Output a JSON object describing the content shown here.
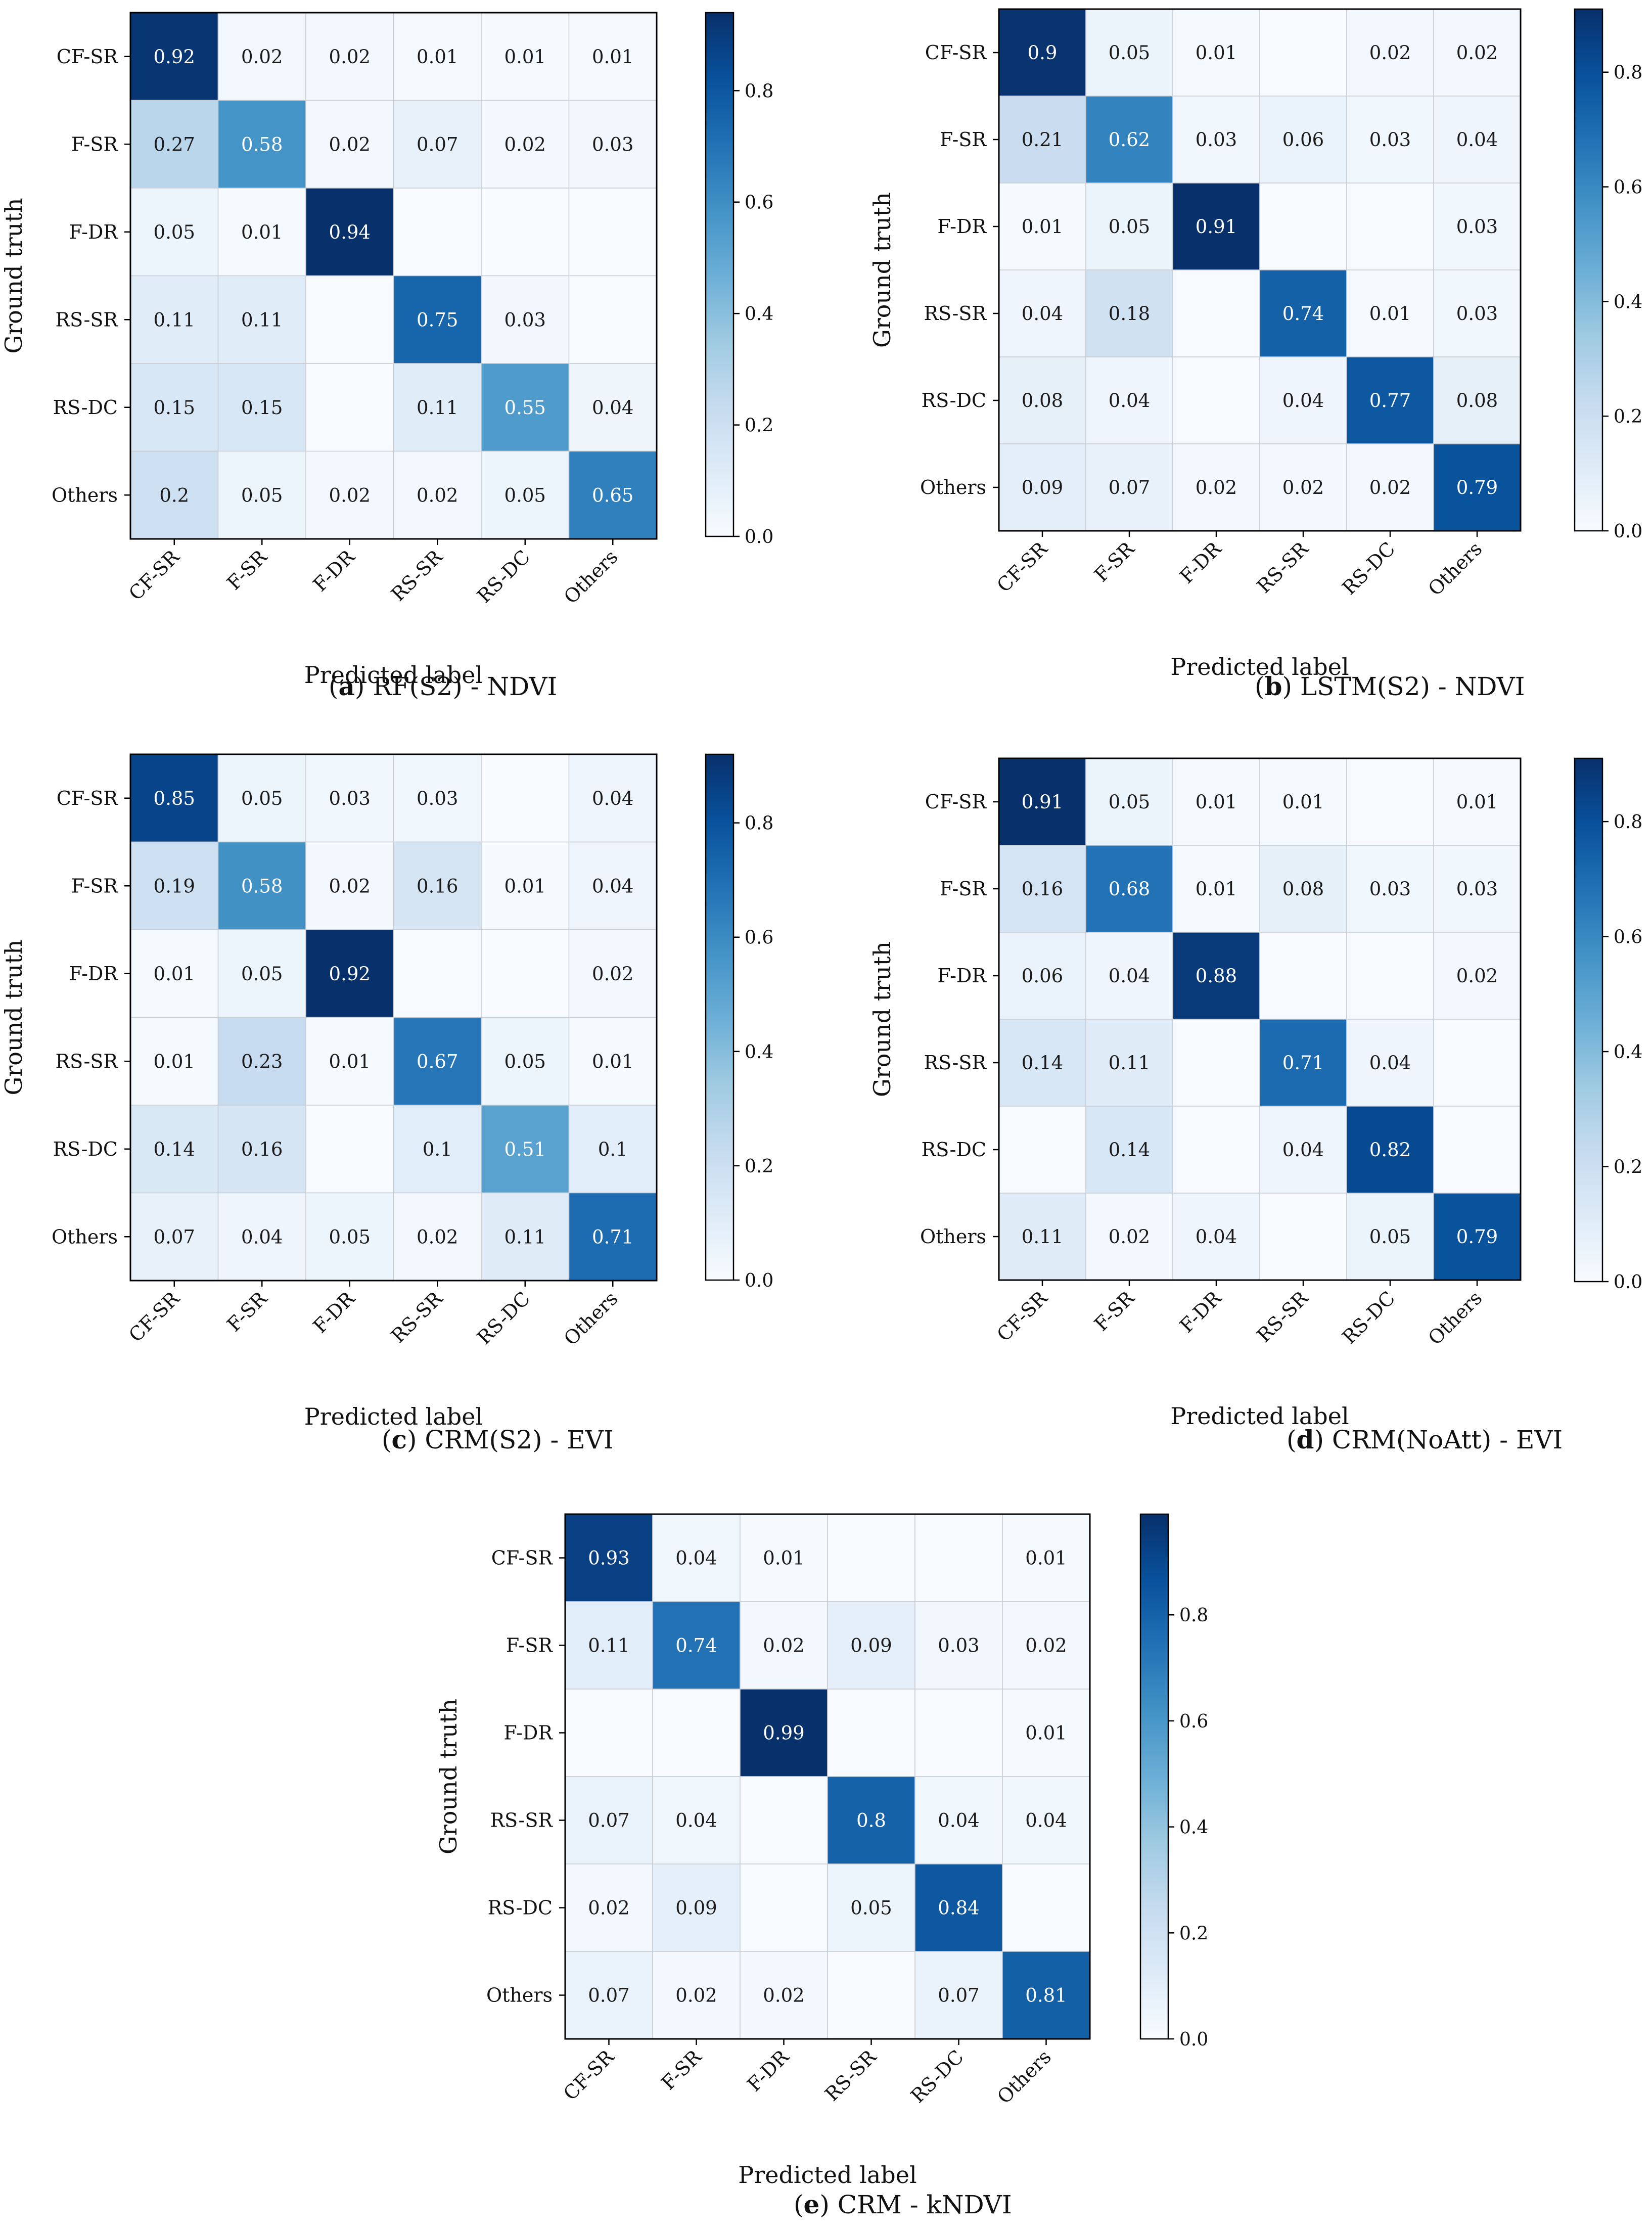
{
  "chart_data": [
    {
      "type": "heatmap",
      "id": "a",
      "caption_letter": "a",
      "caption_text": "RF(S2) - NDVI",
      "xlabel": "Predicted label",
      "ylabel": "Ground truth",
      "categories": [
        "CF-SR",
        "F-SR",
        "F-DR",
        "RS-SR",
        "RS-DC",
        "Others"
      ],
      "values": [
        [
          0.92,
          0.02,
          0.02,
          0.01,
          0.01,
          0.01
        ],
        [
          0.27,
          0.58,
          0.02,
          0.07,
          0.02,
          0.03
        ],
        [
          0.05,
          0.01,
          0.94,
          null,
          null,
          null
        ],
        [
          0.11,
          0.11,
          null,
          0.75,
          0.03,
          null
        ],
        [
          0.15,
          0.15,
          null,
          0.11,
          0.55,
          0.04
        ],
        [
          0.2,
          0.05,
          0.02,
          0.02,
          0.05,
          0.65
        ]
      ],
      "colorbar": {
        "min": 0.0,
        "max": 0.94,
        "ticks": [
          0.0,
          0.2,
          0.4,
          0.6,
          0.8
        ],
        "tick_labels": [
          "0.0",
          "0.2",
          "0.4",
          "0.6",
          "0.8"
        ]
      }
    },
    {
      "type": "heatmap",
      "id": "b",
      "caption_letter": "b",
      "caption_text": "LSTM(S2) - NDVI",
      "xlabel": "Predicted label",
      "ylabel": "Ground truth",
      "categories": [
        "CF-SR",
        "F-SR",
        "F-DR",
        "RS-SR",
        "RS-DC",
        "Others"
      ],
      "values": [
        [
          0.9,
          0.05,
          0.01,
          null,
          0.02,
          0.02
        ],
        [
          0.21,
          0.62,
          0.03,
          0.06,
          0.03,
          0.04
        ],
        [
          0.01,
          0.05,
          0.91,
          null,
          null,
          0.03
        ],
        [
          0.04,
          0.18,
          null,
          0.74,
          0.01,
          0.03
        ],
        [
          0.08,
          0.04,
          null,
          0.04,
          0.77,
          0.08
        ],
        [
          0.09,
          0.07,
          0.02,
          0.02,
          0.02,
          0.79
        ]
      ],
      "colorbar": {
        "min": 0.0,
        "max": 0.91,
        "ticks": [
          0.0,
          0.2,
          0.4,
          0.6,
          0.8
        ],
        "tick_labels": [
          "0.0",
          "0.2",
          "0.4",
          "0.6",
          "0.8"
        ]
      }
    },
    {
      "type": "heatmap",
      "id": "c",
      "caption_letter": "c",
      "caption_text": "CRM(S2) - EVI",
      "xlabel": "Predicted label",
      "ylabel": "Ground truth",
      "categories": [
        "CF-SR",
        "F-SR",
        "F-DR",
        "RS-SR",
        "RS-DC",
        "Others"
      ],
      "values": [
        [
          0.85,
          0.05,
          0.03,
          0.03,
          null,
          0.04
        ],
        [
          0.19,
          0.58,
          0.02,
          0.16,
          0.01,
          0.04
        ],
        [
          0.01,
          0.05,
          0.92,
          null,
          null,
          0.02
        ],
        [
          0.01,
          0.23,
          0.01,
          0.67,
          0.05,
          0.01
        ],
        [
          0.14,
          0.16,
          null,
          0.1,
          0.51,
          0.1
        ],
        [
          0.07,
          0.04,
          0.05,
          0.02,
          0.11,
          0.71
        ]
      ],
      "colorbar": {
        "min": 0.0,
        "max": 0.92,
        "ticks": [
          0.0,
          0.2,
          0.4,
          0.6,
          0.8
        ],
        "tick_labels": [
          "0.0",
          "0.2",
          "0.4",
          "0.6",
          "0.8"
        ]
      }
    },
    {
      "type": "heatmap",
      "id": "d",
      "caption_letter": "d",
      "caption_text": "CRM(NoAtt) - EVI",
      "xlabel": "Predicted label",
      "ylabel": "Ground truth",
      "categories": [
        "CF-SR",
        "F-SR",
        "F-DR",
        "RS-SR",
        "RS-DC",
        "Others"
      ],
      "values": [
        [
          0.91,
          0.05,
          0.01,
          0.01,
          null,
          0.01
        ],
        [
          0.16,
          0.68,
          0.01,
          0.08,
          0.03,
          0.03
        ],
        [
          0.06,
          0.04,
          0.88,
          null,
          null,
          0.02
        ],
        [
          0.14,
          0.11,
          null,
          0.71,
          0.04,
          null
        ],
        [
          null,
          0.14,
          null,
          0.04,
          0.82,
          null
        ],
        [
          0.11,
          0.02,
          0.04,
          null,
          0.05,
          0.79
        ]
      ],
      "colorbar": {
        "min": 0.0,
        "max": 0.91,
        "ticks": [
          0.0,
          0.2,
          0.4,
          0.6,
          0.8
        ],
        "tick_labels": [
          "0.0",
          "0.2",
          "0.4",
          "0.6",
          "0.8"
        ]
      }
    },
    {
      "type": "heatmap",
      "id": "e",
      "caption_letter": "e",
      "caption_text": "CRM - kNDVI",
      "xlabel": "Predicted label",
      "ylabel": "Ground truth",
      "categories": [
        "CF-SR",
        "F-SR",
        "F-DR",
        "RS-SR",
        "RS-DC",
        "Others"
      ],
      "values": [
        [
          0.93,
          0.04,
          0.01,
          null,
          null,
          0.01
        ],
        [
          0.11,
          0.74,
          0.02,
          0.09,
          0.03,
          0.02
        ],
        [
          null,
          null,
          0.99,
          null,
          null,
          0.01
        ],
        [
          0.07,
          0.04,
          null,
          0.8,
          0.04,
          0.04
        ],
        [
          0.02,
          0.09,
          null,
          0.05,
          0.84,
          null
        ],
        [
          0.07,
          0.02,
          0.02,
          null,
          0.07,
          0.81
        ]
      ],
      "colorbar": {
        "min": 0.0,
        "max": 0.99,
        "ticks": [
          0.0,
          0.2,
          0.4,
          0.6,
          0.8
        ],
        "tick_labels": [
          "0.0",
          "0.2",
          "0.4",
          "0.6",
          "0.8"
        ]
      }
    }
  ]
}
